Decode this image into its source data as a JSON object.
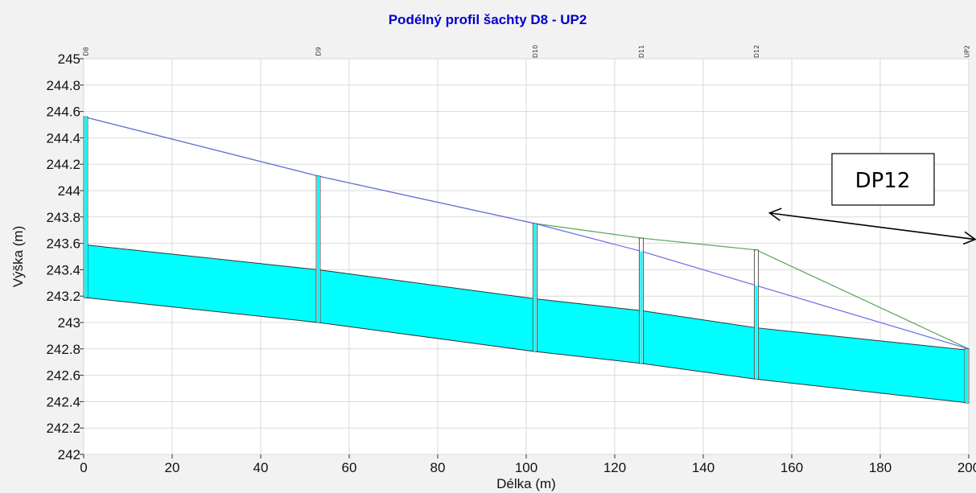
{
  "chart_data": {
    "type": "area",
    "title": "Podélný profil šachty D8 - UP2",
    "xlabel": "Délka (m)",
    "ylabel": "Výška (m)",
    "xlim": [
      0,
      200
    ],
    "ylim": [
      242,
      245
    ],
    "x_ticks": [
      "0",
      "20",
      "40",
      "60",
      "80",
      "100",
      "120",
      "140",
      "160",
      "180",
      "200"
    ],
    "y_ticks": [
      "242",
      "242.2",
      "242.4",
      "242.6",
      "242.8",
      "243",
      "243.2",
      "243.4",
      "243.6",
      "243.8",
      "244",
      "244.2",
      "244.4",
      "244.6",
      "244.8",
      "245"
    ],
    "grid": true,
    "shafts": [
      {
        "name": "D8",
        "x": 0,
        "terrain": 244.56,
        "pipe_top": 243.59,
        "invert": 243.19
      },
      {
        "name": "D9",
        "x": 53,
        "terrain": 244.11,
        "pipe_top": 243.4,
        "invert": 243.0
      },
      {
        "name": "D10",
        "x": 102,
        "terrain": 243.75,
        "pipe_top": 243.18,
        "invert": 242.78
      },
      {
        "name": "D11",
        "x": 126,
        "terrain": 243.64,
        "pipe_top": 243.09,
        "invert": 242.69
      },
      {
        "name": "D12",
        "x": 152,
        "terrain": 243.55,
        "pipe_top": 242.96,
        "invert": 242.57
      },
      {
        "name": "UP2",
        "x": 200,
        "terrain": 242.8,
        "pipe_top": 242.79,
        "invert": 242.39
      }
    ],
    "series": [
      {
        "values": [
          244.56,
          244.11,
          243.75,
          243.64,
          243.55,
          242.8
        ],
        "color": "#5aa55a"
      },
      {
        "values": [
          244.56,
          244.11,
          243.75,
          243.54,
          243.28,
          242.8
        ],
        "color": "#6a6ae6"
      }
    ],
    "fill_color": "#00ffff",
    "annotation": {
      "text": "DP12",
      "arrow": "double",
      "x_start": 155,
      "y_start": 243.83,
      "x_end": 202,
      "y_end": 243.63
    }
  }
}
